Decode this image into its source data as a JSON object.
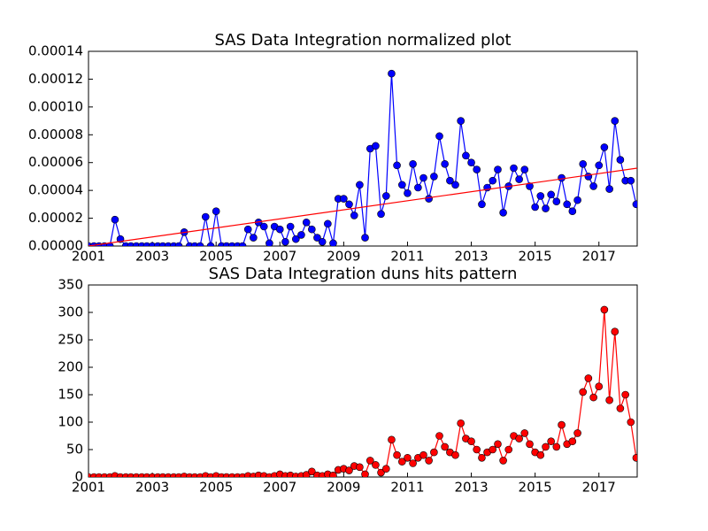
{
  "chart_data": [
    {
      "type": "line",
      "title": "SAS Data Integration normalized plot",
      "x": [
        2001,
        2001.17,
        2001.33,
        2001.5,
        2001.67,
        2001.83,
        2002,
        2002.17,
        2002.33,
        2002.5,
        2002.67,
        2002.83,
        2003,
        2003.17,
        2003.33,
        2003.5,
        2003.67,
        2003.83,
        2004,
        2004.17,
        2004.33,
        2004.5,
        2004.67,
        2004.83,
        2005,
        2005.17,
        2005.33,
        2005.5,
        2005.67,
        2005.83,
        2006,
        2006.17,
        2006.33,
        2006.5,
        2006.67,
        2006.83,
        2007,
        2007.17,
        2007.33,
        2007.5,
        2007.67,
        2007.83,
        2008,
        2008.17,
        2008.33,
        2008.5,
        2008.67,
        2008.83,
        2009,
        2009.17,
        2009.33,
        2009.5,
        2009.67,
        2009.83,
        2010,
        2010.17,
        2010.33,
        2010.5,
        2010.67,
        2010.83,
        2011,
        2011.17,
        2011.33,
        2011.5,
        2011.67,
        2011.83,
        2012,
        2012.17,
        2012.33,
        2012.5,
        2012.67,
        2012.83,
        2013,
        2013.17,
        2013.33,
        2013.5,
        2013.67,
        2013.83,
        2014,
        2014.17,
        2014.33,
        2014.5,
        2014.67,
        2014.83,
        2015,
        2015.17,
        2015.33,
        2015.5,
        2015.67,
        2015.83,
        2016,
        2016.17,
        2016.33,
        2016.5,
        2016.67,
        2016.83,
        2017,
        2017.17,
        2017.33,
        2017.5,
        2017.67,
        2017.83,
        2018,
        2018.17
      ],
      "series": [
        {
          "color": "#0000ff",
          "values": [
            0,
            0,
            0,
            0,
            0,
            1.9e-05,
            5e-06,
            0,
            0,
            0,
            0,
            0,
            0,
            0,
            0,
            0,
            0,
            0,
            1e-05,
            0,
            0,
            0,
            2.1e-05,
            0,
            2.5e-05,
            0,
            0,
            0,
            0,
            0,
            1.2e-05,
            6e-06,
            1.7e-05,
            1.4e-05,
            2e-06,
            1.4e-05,
            1.2e-05,
            3e-06,
            1.4e-05,
            5e-06,
            8e-06,
            1.7e-05,
            1.2e-05,
            6e-06,
            3e-06,
            1.6e-05,
            2e-06,
            3.4e-05,
            3.4e-05,
            3e-05,
            2.2e-05,
            4.4e-05,
            6e-06,
            7e-05,
            7.2e-05,
            2.3e-05,
            3.6e-05,
            0.000124,
            5.8e-05,
            4.4e-05,
            3.8e-05,
            5.9e-05,
            4.2e-05,
            4.9e-05,
            3.4e-05,
            5e-05,
            7.9e-05,
            5.9e-05,
            4.7e-05,
            4.4e-05,
            9e-05,
            6.5e-05,
            6e-05,
            5.5e-05,
            3e-05,
            4.2e-05,
            4.7e-05,
            5.5e-05,
            2.4e-05,
            4.3e-05,
            5.6e-05,
            4.8e-05,
            5.5e-05,
            4.3e-05,
            2.8e-05,
            3.6e-05,
            2.7e-05,
            3.7e-05,
            3.2e-05,
            4.9e-05,
            3e-05,
            2.5e-05,
            3.3e-05,
            5.9e-05,
            5e-05,
            4.3e-05,
            5.8e-05,
            7.1e-05,
            4.1e-05,
            9e-05,
            6.2e-05,
            4.7e-05,
            4.7e-05,
            3e-05
          ]
        }
      ],
      "trend": {
        "x": [
          2001,
          2018.2
        ],
        "values": [
          0,
          5.6e-05
        ],
        "color": "#ff0000"
      },
      "xlim": [
        2001,
        2018.2
      ],
      "xticks": [
        2001,
        2003,
        2005,
        2007,
        2009,
        2011,
        2013,
        2015,
        2017
      ],
      "ylim": [
        0,
        0.00014
      ],
      "yticks": [
        {
          "value": 0,
          "label": "0.00000"
        },
        {
          "value": 2e-05,
          "label": "0.00002"
        },
        {
          "value": 4e-05,
          "label": "0.00004"
        },
        {
          "value": 6e-05,
          "label": "0.00006"
        },
        {
          "value": 8e-05,
          "label": "0.00008"
        },
        {
          "value": 0.0001,
          "label": "0.00010"
        },
        {
          "value": 0.00012,
          "label": "0.00012"
        },
        {
          "value": 0.00014,
          "label": "0.00014"
        }
      ]
    },
    {
      "type": "line",
      "title": "SAS Data Integration duns hits pattern",
      "x": [
        2001,
        2001.17,
        2001.33,
        2001.5,
        2001.67,
        2001.83,
        2002,
        2002.17,
        2002.33,
        2002.5,
        2002.67,
        2002.83,
        2003,
        2003.17,
        2003.33,
        2003.5,
        2003.67,
        2003.83,
        2004,
        2004.17,
        2004.33,
        2004.5,
        2004.67,
        2004.83,
        2005,
        2005.17,
        2005.33,
        2005.5,
        2005.67,
        2005.83,
        2006,
        2006.17,
        2006.33,
        2006.5,
        2006.67,
        2006.83,
        2007,
        2007.17,
        2007.33,
        2007.5,
        2007.67,
        2007.83,
        2008,
        2008.17,
        2008.33,
        2008.5,
        2008.67,
        2008.83,
        2009,
        2009.17,
        2009.33,
        2009.5,
        2009.67,
        2009.83,
        2010,
        2010.17,
        2010.33,
        2010.5,
        2010.67,
        2010.83,
        2011,
        2011.17,
        2011.33,
        2011.5,
        2011.67,
        2011.83,
        2012,
        2012.17,
        2012.33,
        2012.5,
        2012.67,
        2012.83,
        2013,
        2013.17,
        2013.33,
        2013.5,
        2013.67,
        2013.83,
        2014,
        2014.17,
        2014.33,
        2014.5,
        2014.67,
        2014.83,
        2015,
        2015.17,
        2015.33,
        2015.5,
        2015.67,
        2015.83,
        2016,
        2016.17,
        2016.33,
        2016.5,
        2016.67,
        2016.83,
        2017,
        2017.17,
        2017.33,
        2017.5,
        2017.67,
        2017.83,
        2018,
        2018.17
      ],
      "series": [
        {
          "color": "#ff0000",
          "values": [
            0,
            0,
            0,
            0,
            0,
            2,
            0,
            0,
            0,
            0,
            0,
            0,
            0,
            0,
            0,
            0,
            0,
            0,
            1,
            0,
            0,
            0,
            2,
            0,
            2,
            0,
            0,
            0,
            0,
            0,
            2,
            1,
            3,
            2,
            0,
            2,
            5,
            2,
            3,
            1,
            2,
            4,
            10,
            3,
            2,
            5,
            3,
            13,
            15,
            12,
            20,
            18,
            5,
            30,
            22,
            8,
            15,
            68,
            40,
            28,
            35,
            25,
            35,
            40,
            30,
            45,
            75,
            55,
            45,
            40,
            98,
            70,
            65,
            50,
            35,
            45,
            50,
            60,
            30,
            50,
            75,
            70,
            80,
            60,
            45,
            40,
            55,
            65,
            55,
            95,
            60,
            65,
            80,
            155,
            180,
            145,
            165,
            305,
            140,
            265,
            125,
            150,
            100,
            35
          ]
        }
      ],
      "xlim": [
        2001,
        2018.2
      ],
      "xticks": [
        2001,
        2003,
        2005,
        2007,
        2009,
        2011,
        2013,
        2015,
        2017
      ],
      "ylim": [
        0,
        350
      ],
      "yticks": [
        0,
        50,
        100,
        150,
        200,
        250,
        300,
        350
      ]
    }
  ]
}
